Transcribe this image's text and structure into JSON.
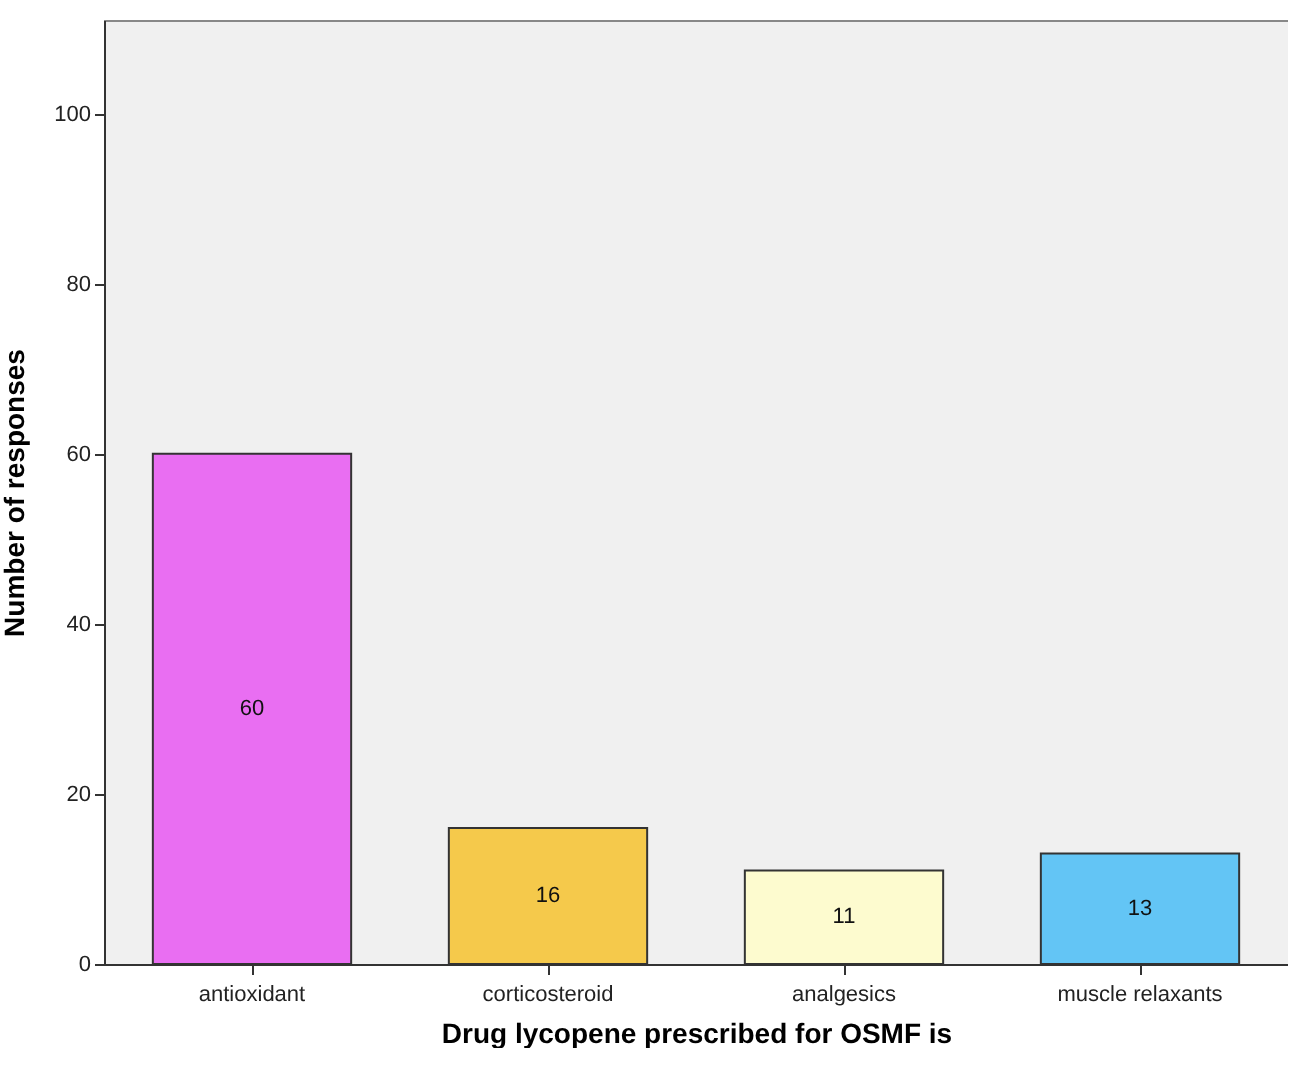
{
  "chart_data": {
    "type": "bar",
    "xlabel": "Drug lycopene prescribed for OSMF is",
    "ylabel": "Number of responses",
    "categories": [
      "antioxidant",
      "corticosteroid",
      "analgesics",
      "muscle relaxants"
    ],
    "values": [
      60,
      16,
      11,
      13
    ],
    "colors": [
      "#e96ef2",
      "#f5c94b",
      "#fdfbcf",
      "#63c5f5"
    ],
    "ylim": [
      0,
      111
    ],
    "yticks": [
      0,
      20,
      40,
      60,
      80,
      100
    ],
    "grid": false,
    "data_labels": true
  }
}
